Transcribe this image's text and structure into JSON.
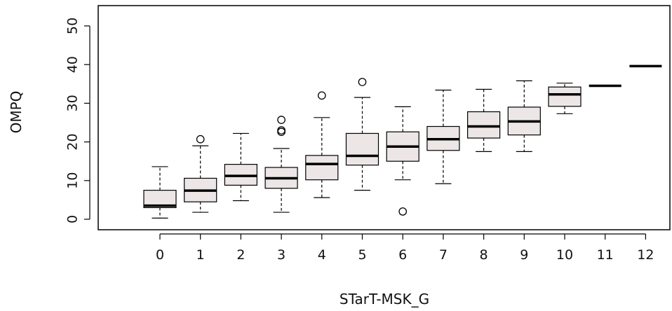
{
  "chart_data": {
    "type": "boxplot",
    "xlabel": "STarT-MSK_G",
    "ylabel": "OMPQ",
    "ylim": [
      0,
      55
    ],
    "yticks": [
      0,
      10,
      20,
      30,
      40,
      50
    ],
    "categories": [
      "0",
      "1",
      "2",
      "3",
      "4",
      "5",
      "6",
      "7",
      "8",
      "9",
      "10",
      "11",
      "12"
    ],
    "box_fill": "#ece6e6",
    "boxes": [
      {
        "category": "0",
        "lower_whisker": 0.3,
        "q1": 3.0,
        "median": 3.5,
        "q3": 7.5,
        "upper_whisker": 13.6,
        "outliers": []
      },
      {
        "category": "1",
        "lower_whisker": 1.8,
        "q1": 4.5,
        "median": 7.4,
        "q3": 10.6,
        "upper_whisker": 19.0,
        "outliers": [
          20.7
        ]
      },
      {
        "category": "2",
        "lower_whisker": 4.8,
        "q1": 8.8,
        "median": 11.2,
        "q3": 14.2,
        "upper_whisker": 22.2,
        "outliers": []
      },
      {
        "category": "3",
        "lower_whisker": 1.8,
        "q1": 8.0,
        "median": 10.6,
        "q3": 13.4,
        "upper_whisker": 18.3,
        "outliers": [
          22.6,
          23.0,
          25.7
        ]
      },
      {
        "category": "4",
        "lower_whisker": 5.6,
        "q1": 10.2,
        "median": 14.3,
        "q3": 16.5,
        "upper_whisker": 26.3,
        "outliers": [
          32.0
        ]
      },
      {
        "category": "5",
        "lower_whisker": 7.5,
        "q1": 14.0,
        "median": 16.4,
        "q3": 22.2,
        "upper_whisker": 31.5,
        "outliers": [
          35.5
        ]
      },
      {
        "category": "6",
        "lower_whisker": 10.2,
        "q1": 15.0,
        "median": 18.8,
        "q3": 22.6,
        "upper_whisker": 29.1,
        "outliers": [
          2.0
        ]
      },
      {
        "category": "7",
        "lower_whisker": 9.2,
        "q1": 17.8,
        "median": 20.7,
        "q3": 24.0,
        "upper_whisker": 33.4,
        "outliers": []
      },
      {
        "category": "8",
        "lower_whisker": 17.5,
        "q1": 21.0,
        "median": 24.0,
        "q3": 27.8,
        "upper_whisker": 33.6,
        "outliers": []
      },
      {
        "category": "9",
        "lower_whisker": 17.5,
        "q1": 21.8,
        "median": 25.3,
        "q3": 29.0,
        "upper_whisker": 35.8,
        "outliers": []
      },
      {
        "category": "10",
        "lower_whisker": 27.3,
        "q1": 29.2,
        "median": 32.3,
        "q3": 34.2,
        "upper_whisker": 35.2,
        "outliers": []
      },
      {
        "category": "11",
        "lower_whisker": 34.5,
        "q1": 34.5,
        "median": 34.5,
        "q3": 34.5,
        "upper_whisker": 34.5,
        "outliers": []
      },
      {
        "category": "12",
        "lower_whisker": 39.6,
        "q1": 39.6,
        "median": 39.6,
        "q3": 39.6,
        "upper_whisker": 39.6,
        "outliers": []
      }
    ]
  }
}
